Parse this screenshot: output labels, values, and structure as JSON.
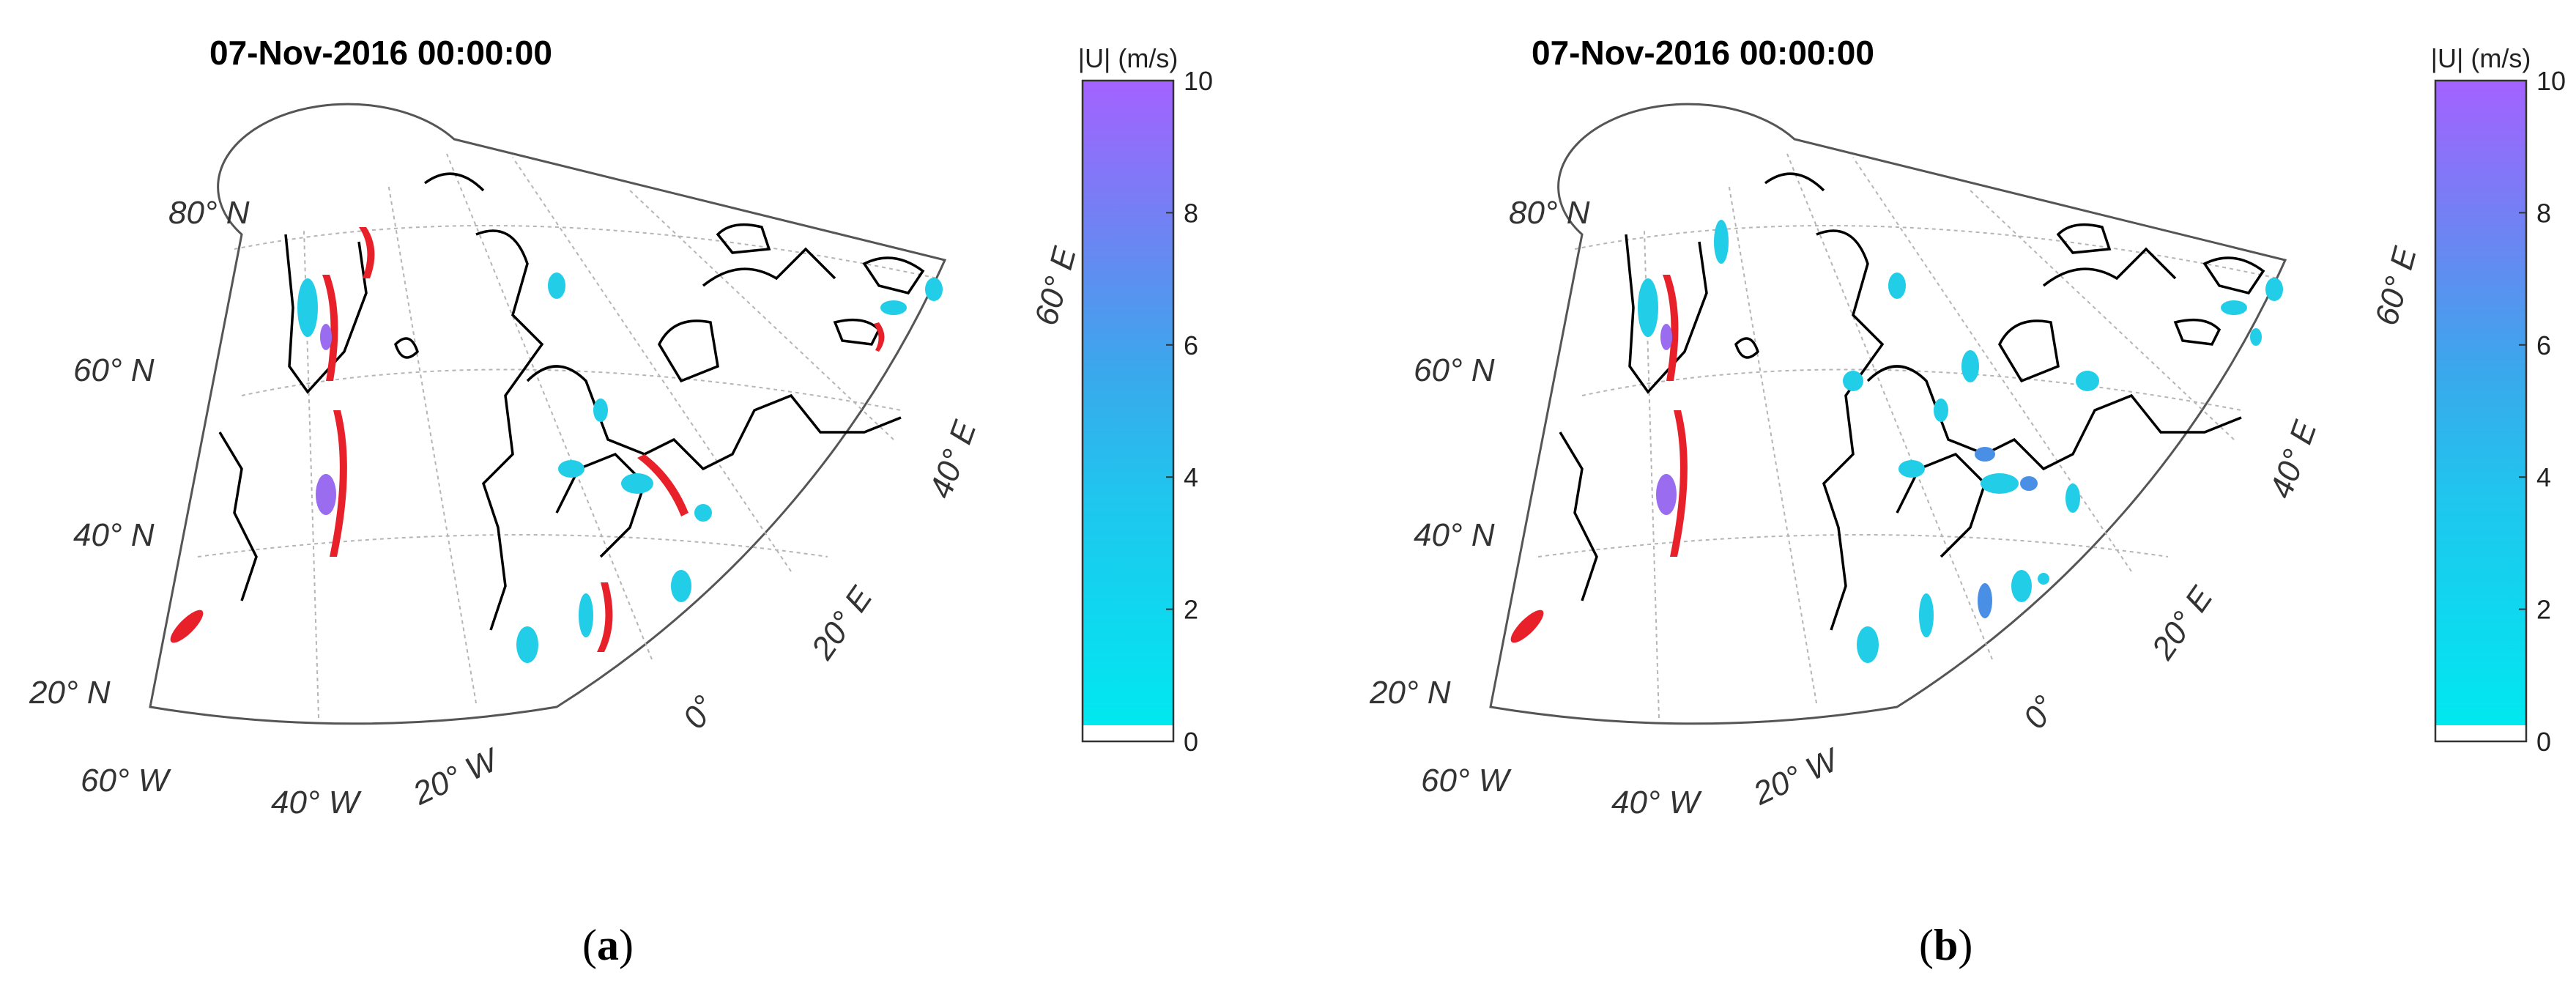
{
  "panels": [
    {
      "id": "a",
      "title": "07-Nov-2016 00:00:00",
      "caption_open": "(",
      "caption_letter": "a",
      "caption_close": ")",
      "lat_labels": [
        "80° N",
        "60° N",
        "40° N",
        "20° N"
      ],
      "lon_labels": [
        "60° W",
        "40° W",
        "20° W",
        "0°",
        "20° E",
        "40° E",
        "60° E"
      ],
      "colorbar": {
        "label": "|U| (m/s)",
        "ticks": [
          "0",
          "2",
          "4",
          "6",
          "8",
          "10"
        ],
        "min": 0,
        "max": 10,
        "colors": [
          "#ffffff",
          "#00e5f2",
          "#3fb6ee",
          "#a663ff"
        ]
      }
    },
    {
      "id": "b",
      "title": "07-Nov-2016 00:00:00",
      "caption_open": "(",
      "caption_letter": "b",
      "caption_close": ")",
      "lat_labels": [
        "80° N",
        "60° N",
        "40° N",
        "20° N"
      ],
      "lon_labels": [
        "60° W",
        "40° W",
        "20° W",
        "0°",
        "20° E",
        "40° E",
        "60° E"
      ],
      "colorbar": {
        "label": "|U| (m/s)",
        "ticks": [
          "0",
          "2",
          "4",
          "6",
          "8",
          "10"
        ],
        "min": 0,
        "max": 10,
        "colors": [
          "#ffffff",
          "#00e5f2",
          "#3fb6ee",
          "#a663ff"
        ]
      }
    }
  ],
  "colors": {
    "invalid_wind": "#e8202a",
    "coastline": "#000000",
    "graticule": "#aaaaaa"
  }
}
